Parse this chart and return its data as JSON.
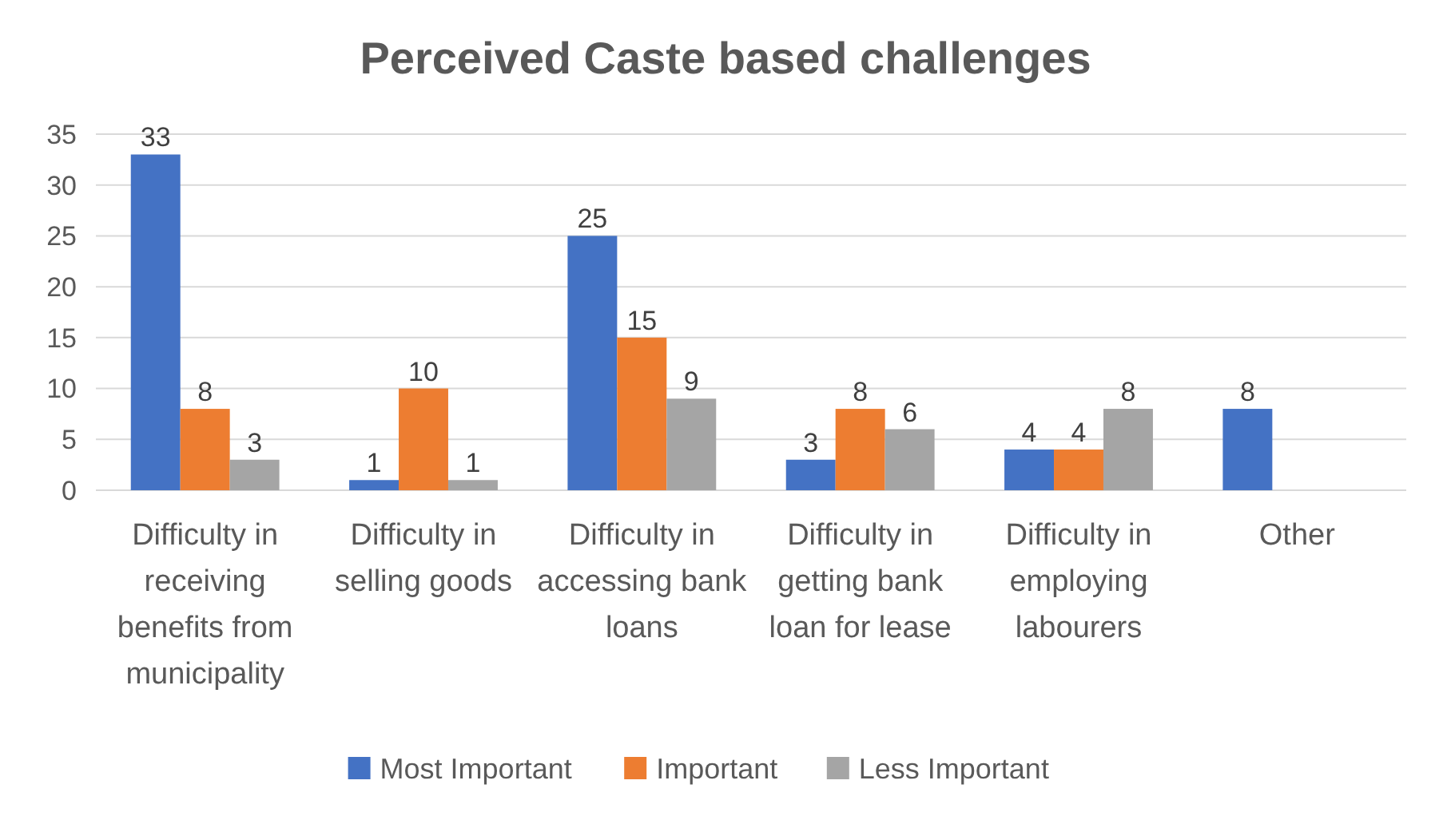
{
  "chart_data": {
    "type": "bar",
    "title": "Perceived Caste based challenges",
    "categories": [
      "Difficulty in receiving benefits from municipality",
      "Difficulty in selling goods",
      "Difficulty in accessing bank loans",
      "Difficulty in getting bank loan for lease",
      "Difficulty in employing labourers",
      "Other"
    ],
    "series": [
      {
        "name": "Most Important",
        "color": "#4472c4",
        "values": [
          33,
          1,
          25,
          3,
          4,
          8
        ]
      },
      {
        "name": "Important",
        "color": "#ed7d31",
        "values": [
          8,
          10,
          15,
          8,
          4,
          null
        ]
      },
      {
        "name": "Less Important",
        "color": "#a5a5a5",
        "values": [
          3,
          1,
          9,
          6,
          8,
          null
        ]
      }
    ],
    "ylim": [
      0,
      35
    ],
    "yticks": [
      0,
      5,
      10,
      15,
      20,
      25,
      30,
      35
    ],
    "grid": "y",
    "legend": "bottom",
    "data_labels": true
  }
}
